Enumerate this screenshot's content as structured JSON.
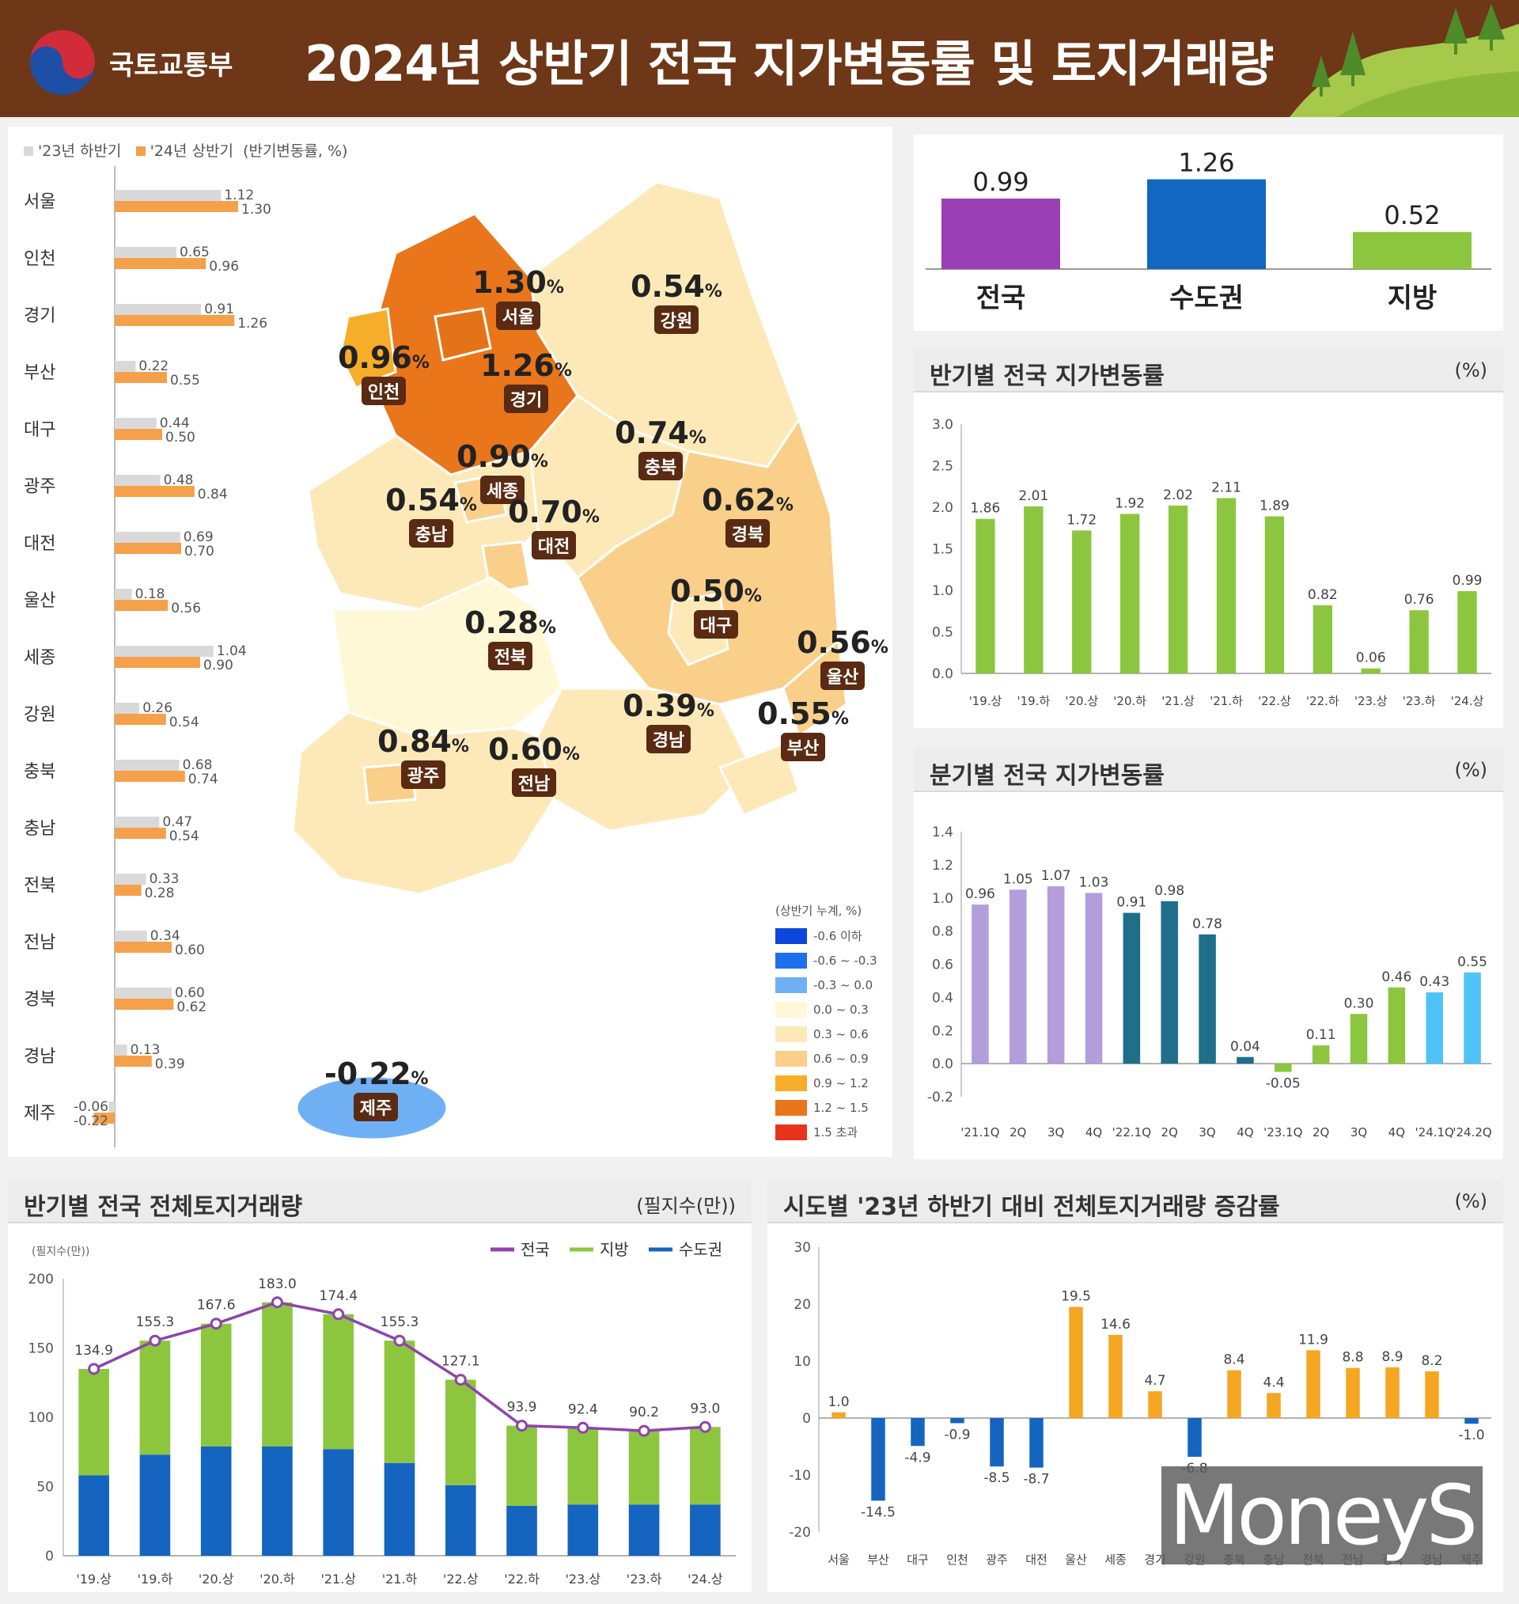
{
  "header": {
    "ministry": "국토교통부",
    "title": "2024년 상반기 전국 지가변동률 및 토지거래량"
  },
  "colors": {
    "header_bg": "#6e3717",
    "prev_half": "#d9d9d9",
    "curr_half": "#f5a04a",
    "green": "#8cc63f",
    "blue": "#1565c0",
    "purple": "#8e44ad",
    "orange": "#f5a623",
    "line": "#8e44ad"
  },
  "map": {
    "legend_prev": "'23년 하반기",
    "legend_curr": "'24년 상반기",
    "legend_unit": "(반기변동률, %)",
    "regions": [
      {
        "name": "서울",
        "value": "1.30",
        "unit": "%"
      },
      {
        "name": "인천",
        "value": "0.96",
        "unit": "%"
      },
      {
        "name": "경기",
        "value": "1.26",
        "unit": "%"
      },
      {
        "name": "강원",
        "value": "0.54",
        "unit": "%"
      },
      {
        "name": "세종",
        "value": "0.90",
        "unit": "%"
      },
      {
        "name": "충북",
        "value": "0.74",
        "unit": "%"
      },
      {
        "name": "충남",
        "value": "0.54",
        "unit": "%"
      },
      {
        "name": "대전",
        "value": "0.70",
        "unit": "%"
      },
      {
        "name": "경북",
        "value": "0.62",
        "unit": "%"
      },
      {
        "name": "대구",
        "value": "0.50",
        "unit": "%"
      },
      {
        "name": "울산",
        "value": "0.56",
        "unit": "%"
      },
      {
        "name": "전북",
        "value": "0.28",
        "unit": "%"
      },
      {
        "name": "경남",
        "value": "0.39",
        "unit": "%"
      },
      {
        "name": "부산",
        "value": "0.55",
        "unit": "%"
      },
      {
        "name": "광주",
        "value": "0.84",
        "unit": "%"
      },
      {
        "name": "전남",
        "value": "0.60",
        "unit": "%"
      },
      {
        "name": "제주",
        "value": "-0.22",
        "unit": "%"
      }
    ],
    "color_legend_title": "(상반기 누계, %)",
    "color_legend": [
      {
        "label": "-0.6 이하",
        "color": "#0d47d9"
      },
      {
        "label": "-0.6 ~ -0.3",
        "color": "#1e6ef0"
      },
      {
        "label": "-0.3 ~ 0.0",
        "color": "#6fb0f5"
      },
      {
        "label": "0.0 ~ 0.3",
        "color": "#fff8d6"
      },
      {
        "label": "0.3 ~ 0.6",
        "color": "#fde9b8"
      },
      {
        "label": "0.6 ~ 0.9",
        "color": "#f9cf8a"
      },
      {
        "label": "0.9 ~ 1.2",
        "color": "#f6ad2a"
      },
      {
        "label": "1.2 ~ 1.5",
        "color": "#e9761b"
      },
      {
        "label": "1.5 초과",
        "color": "#e8331c"
      }
    ]
  },
  "chart_data": [
    {
      "type": "bar",
      "id": "regional",
      "categories": [
        "서울",
        "인천",
        "경기",
        "부산",
        "대구",
        "광주",
        "대전",
        "울산",
        "세종",
        "강원",
        "충북",
        "충남",
        "전북",
        "전남",
        "경북",
        "경남",
        "제주"
      ],
      "series": [
        {
          "name": "'23년 하반기",
          "values": [
            1.12,
            0.65,
            0.91,
            0.22,
            0.44,
            0.48,
            0.69,
            0.18,
            1.04,
            0.26,
            0.68,
            0.47,
            0.33,
            0.34,
            0.6,
            0.13,
            -0.06
          ]
        },
        {
          "name": "'24년 상반기",
          "values": [
            1.3,
            0.96,
            1.26,
            0.55,
            0.5,
            0.84,
            0.7,
            0.56,
            0.9,
            0.54,
            0.74,
            0.54,
            0.28,
            0.6,
            0.62,
            0.39,
            -0.22
          ]
        }
      ],
      "labels_prev": [
        "1.12",
        "0.65",
        "0.91",
        "0.22",
        "0.44",
        "0.48",
        "0.69",
        "0.18",
        "1.04",
        "0.26",
        "0.68",
        "0.47",
        "0.33",
        "0.34",
        "0.60",
        "0.13",
        "-0.06"
      ],
      "labels_curr": [
        "1.30",
        "0.96",
        "1.26",
        "0.55",
        "0.50",
        "0.84",
        "0.70",
        "0.56",
        "0.90",
        "0.54",
        "0.74",
        "0.54",
        "0.28",
        "0.60",
        "0.62",
        "0.39",
        "-0.22"
      ]
    },
    {
      "type": "bar",
      "id": "summary",
      "categories": [
        "전국",
        "수도권",
        "지방"
      ],
      "values": [
        0.99,
        1.26,
        0.52
      ],
      "labels": [
        "0.99",
        "1.26",
        "0.52"
      ],
      "colors": [
        "#9b3fb5",
        "#1167c2",
        "#8cc63f"
      ]
    },
    {
      "type": "bar",
      "id": "halfyear",
      "title": "반기별 전국 지가변동률",
      "unit": "(%)",
      "categories": [
        "'19.상",
        "'19.하",
        "'20.상",
        "'20.하",
        "'21.상",
        "'21.하",
        "'22.상",
        "'22.하",
        "'23.상",
        "'23.하",
        "'24.상"
      ],
      "values": [
        1.86,
        2.01,
        1.72,
        1.92,
        2.02,
        2.11,
        1.89,
        0.82,
        0.06,
        0.76,
        0.99
      ],
      "labels": [
        "1.86",
        "2.01",
        "1.72",
        "1.92",
        "2.02",
        "2.11",
        "1.89",
        "0.82",
        "0.06",
        "0.76",
        "0.99"
      ],
      "ylim": [
        0,
        3.0
      ],
      "yticks": [
        "0.0",
        "0.5",
        "1.0",
        "1.5",
        "2.0",
        "2.5",
        "3.0"
      ]
    },
    {
      "type": "bar",
      "id": "quarterly",
      "title": "분기별 전국 지가변동률",
      "unit": "(%)",
      "categories": [
        "'21.1Q",
        "2Q",
        "3Q",
        "4Q",
        "'22.1Q",
        "2Q",
        "3Q",
        "4Q",
        "'23.1Q",
        "2Q",
        "3Q",
        "4Q",
        "'24.1Q",
        "'24.2Q"
      ],
      "values": [
        0.96,
        1.05,
        1.07,
        1.03,
        0.91,
        0.98,
        0.78,
        0.04,
        -0.05,
        0.11,
        0.3,
        0.46,
        0.43,
        0.55
      ],
      "labels": [
        "0.96",
        "1.05",
        "1.07",
        "1.03",
        "0.91",
        "0.98",
        "0.78",
        "0.04",
        "-0.05",
        "0.11",
        "0.30",
        "0.46",
        "0.43",
        "0.55"
      ],
      "colors": [
        "#b39ddb",
        "#b39ddb",
        "#b39ddb",
        "#b39ddb",
        "#1f6f8b",
        "#1f6f8b",
        "#1f6f8b",
        "#1f6f8b",
        "#8cc63f",
        "#8cc63f",
        "#8cc63f",
        "#8cc63f",
        "#4fc3f7",
        "#4fc3f7"
      ],
      "ylim": [
        -0.2,
        1.4
      ],
      "yticks": [
        "-0.2",
        "0.0",
        "0.2",
        "0.4",
        "0.6",
        "0.8",
        "1.0",
        "1.2",
        "1.4"
      ]
    },
    {
      "type": "bar",
      "id": "volume",
      "title": "반기별 전국 전체토지거래량",
      "unit": "(필지수(만))",
      "axis_note": "(필지수(만))",
      "categories": [
        "'19.상",
        "'19.하",
        "'20.상",
        "'20.하",
        "'21.상",
        "'21.하",
        "'22.상",
        "'22.하",
        "'23.상",
        "'23.하",
        "'24.상"
      ],
      "series": [
        {
          "name": "수도권",
          "values": [
            58,
            73,
            79,
            79,
            77,
            67,
            51,
            36,
            37,
            37,
            37
          ]
        },
        {
          "name": "지방",
          "values": [
            76.9,
            82.3,
            88.6,
            104.0,
            97.4,
            88.3,
            76.1,
            57.9,
            55.4,
            53.2,
            56.0
          ]
        },
        {
          "name": "전국",
          "values": [
            134.9,
            155.3,
            167.6,
            183.0,
            174.4,
            155.3,
            127.1,
            93.9,
            92.4,
            90.2,
            93.0
          ]
        }
      ],
      "total_labels": [
        "134.9",
        "155.3",
        "167.6",
        "183.0",
        "174.4",
        "155.3",
        "127.1",
        "93.9",
        "92.4",
        "90.2",
        "93.0"
      ],
      "legend": [
        "전국",
        "지방",
        "수도권"
      ],
      "ylim": [
        0,
        200
      ],
      "yticks": [
        "0",
        "50",
        "100",
        "150",
        "200"
      ]
    },
    {
      "type": "bar",
      "id": "change",
      "title": "시도별 '23년 하반기 대비 전체토지거래량 증감률",
      "unit": "(%)",
      "categories": [
        "서울",
        "부산",
        "대구",
        "인천",
        "광주",
        "대전",
        "울산",
        "세종",
        "경기",
        "강원",
        "충북",
        "충남",
        "전북",
        "전남",
        "경북",
        "경남",
        "제주"
      ],
      "values": [
        1.0,
        -14.5,
        -4.9,
        -0.9,
        -8.5,
        -8.7,
        19.5,
        14.6,
        4.7,
        -6.8,
        8.4,
        4.4,
        11.9,
        8.8,
        8.9,
        8.2,
        -1.0
      ],
      "labels": [
        "1.0",
        "-14.5",
        "-4.9",
        "-0.9",
        "-8.5",
        "-8.7",
        "19.5",
        "14.6",
        "4.7",
        "-6.8",
        "8.4",
        "4.4",
        "11.9",
        "8.8",
        "8.9",
        "8.2",
        "-1.0"
      ],
      "ylim": [
        -20,
        30
      ],
      "yticks": [
        "-20",
        "-10",
        "0",
        "10",
        "20",
        "30"
      ]
    }
  ],
  "watermark": "MoneyS"
}
